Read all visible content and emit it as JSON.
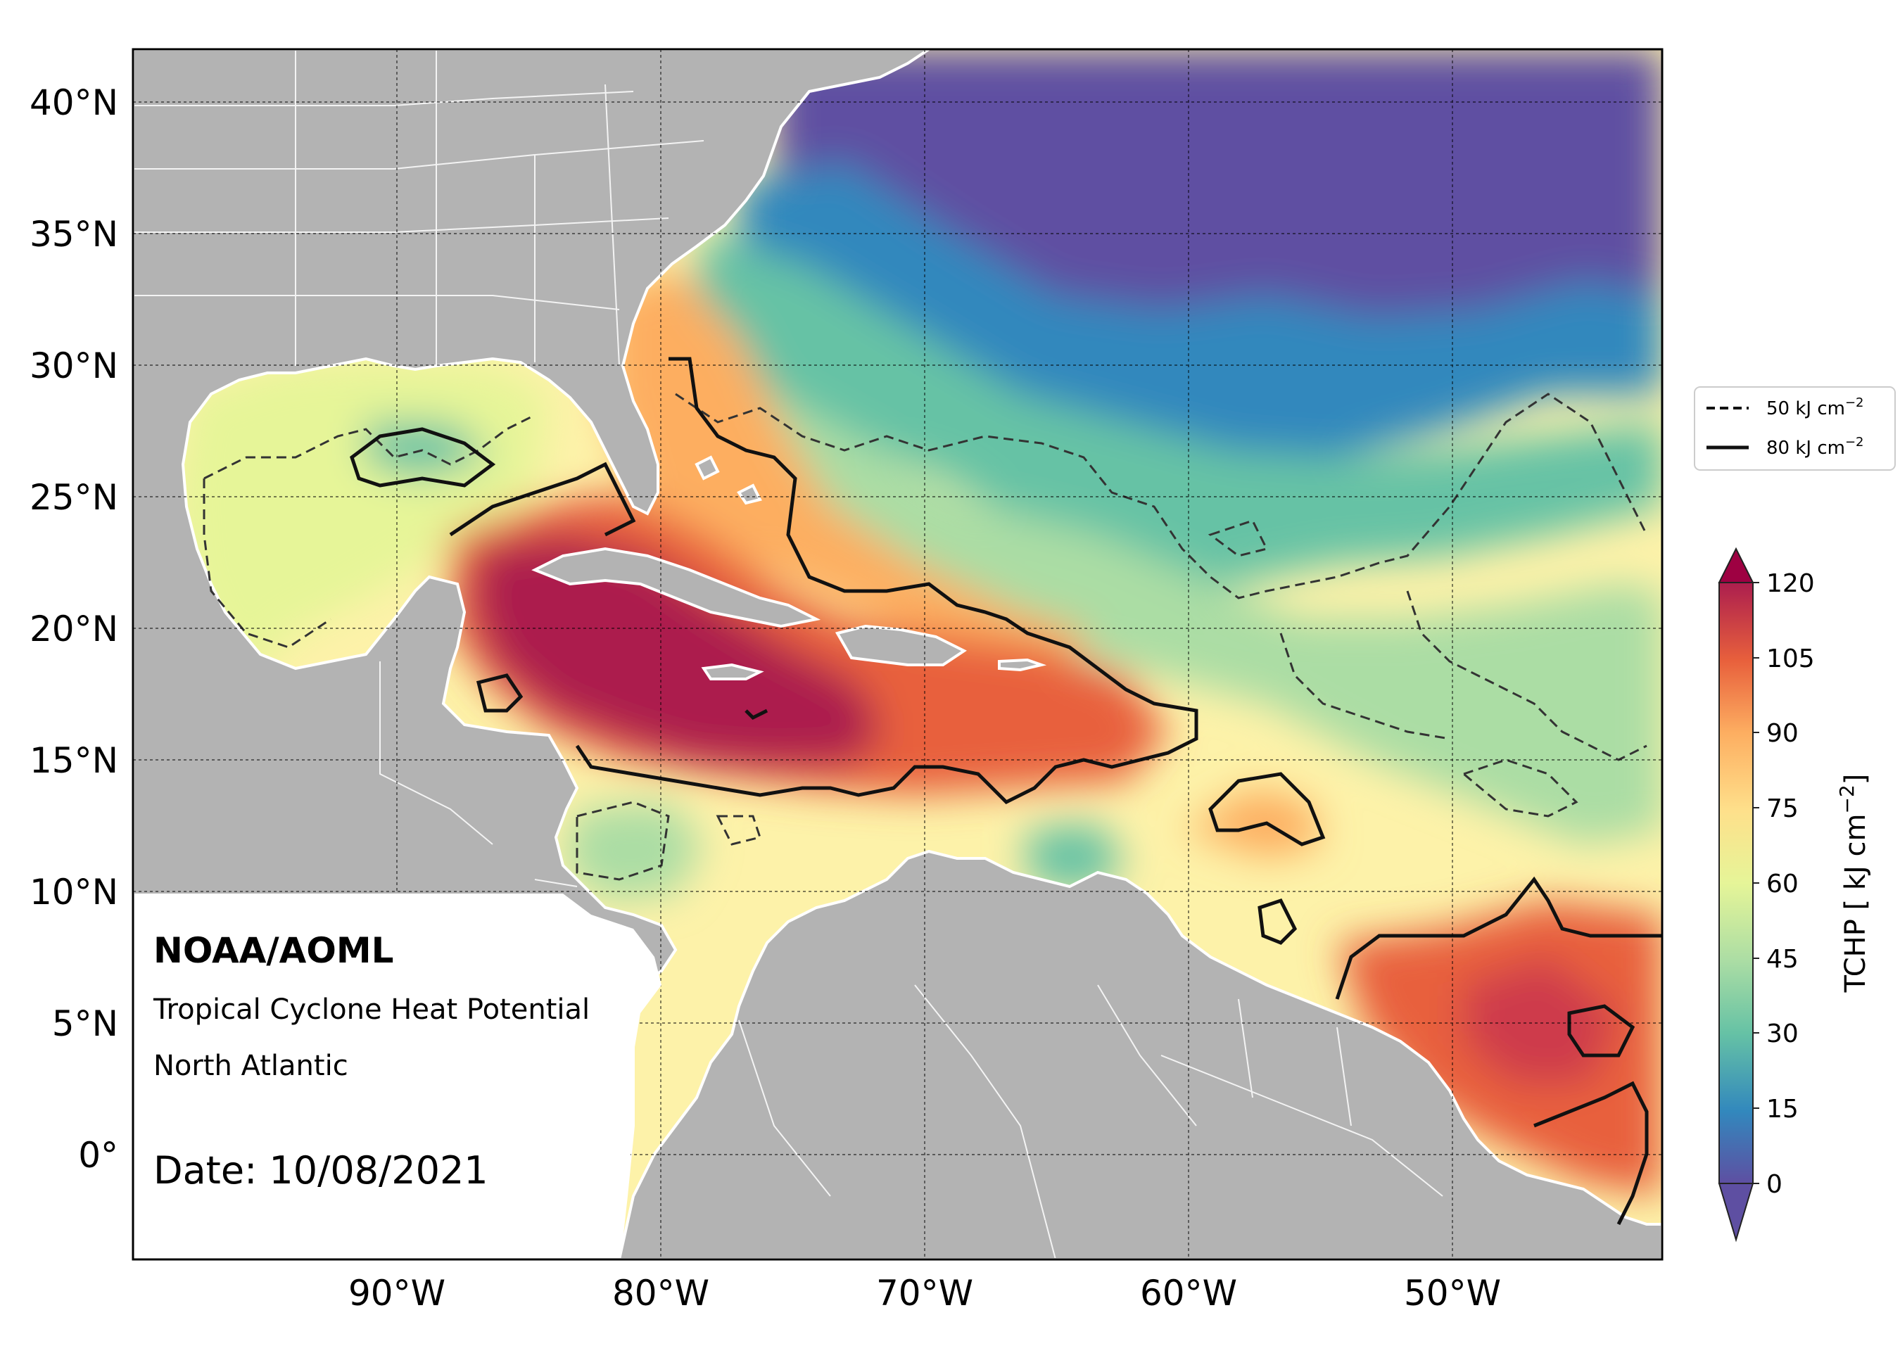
{
  "map": {
    "lat_labels": [
      "40°N",
      "35°N",
      "30°N",
      "25°N",
      "20°N",
      "15°N",
      "10°N",
      "5°N",
      "0°"
    ],
    "lon_labels": [
      "90°W",
      "80°W",
      "70°W",
      "60°W",
      "50°W"
    ]
  },
  "annotation": {
    "org": "NOAA/AOML",
    "product": "Tropical Cyclone Heat Potential",
    "region": "North Atlantic",
    "date": "Date: 10/08/2021"
  },
  "legend": {
    "dashed": "50 kJ cm",
    "solid": "80 kJ cm",
    "exp": "−2"
  },
  "colorbar": {
    "label": "TCHP [ kJ cm",
    "label_exp": "−2",
    "label_close": "]",
    "ticks": [
      "120",
      "105",
      "90",
      "75",
      "60",
      "45",
      "30",
      "15",
      "0"
    ]
  },
  "colors": {
    "land": "#b3b3b3",
    "coast": "#ffffff",
    "cold": "#5e4fa2",
    "warm": "#ac1e4e"
  }
}
